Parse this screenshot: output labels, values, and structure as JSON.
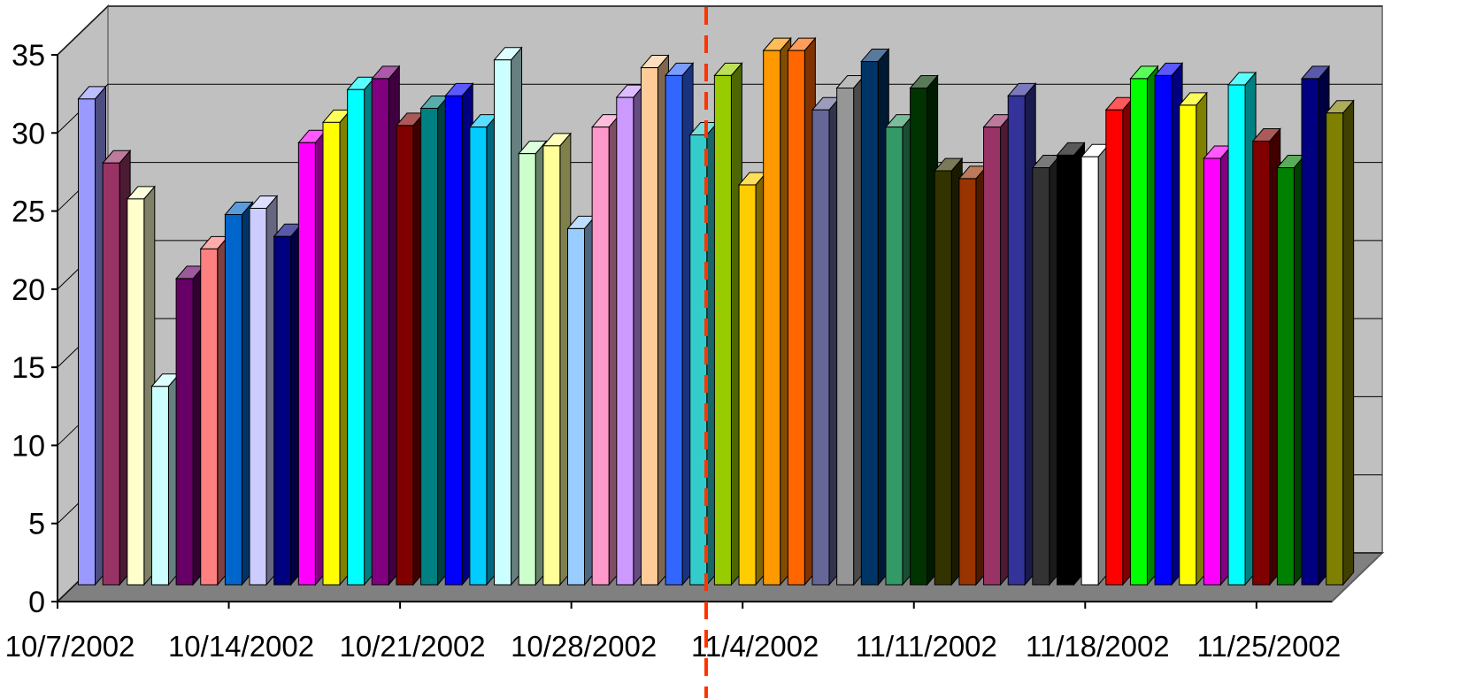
{
  "chart_data": {
    "type": "bar3d",
    "categories": [
      "10/7/2002",
      null,
      null,
      null,
      null,
      null,
      null,
      "10/14/2002",
      null,
      null,
      null,
      null,
      null,
      null,
      "10/21/2002",
      null,
      null,
      null,
      null,
      null,
      null,
      "10/28/2002",
      null,
      null,
      null,
      null,
      null,
      null,
      "11/4/2002",
      null,
      null,
      null,
      null,
      null,
      null,
      "11/11/2002",
      null,
      null,
      null,
      null,
      null,
      null,
      "11/18/2002",
      null,
      null,
      null,
      null,
      null,
      null,
      "11/25/2002",
      null,
      null
    ],
    "values": [
      31.1,
      27.0,
      24.7,
      12.7,
      19.6,
      21.5,
      23.7,
      24.1,
      22.3,
      28.3,
      29.6,
      31.7,
      32.4,
      29.4,
      30.5,
      31.3,
      29.3,
      33.6,
      27.6,
      28.1,
      22.8,
      29.3,
      31.2,
      33.1,
      32.6,
      28.8,
      32.6,
      25.6,
      34.2,
      34.2,
      30.4,
      31.8,
      33.5,
      29.3,
      31.8,
      26.5,
      26.0,
      29.3,
      31.3,
      26.7,
      27.5,
      27.4,
      30.4,
      32.4,
      32.6,
      30.7,
      27.3,
      32.0,
      28.4,
      26.7,
      32.4,
      30.2
    ],
    "colors": [
      "#9999ff",
      "#993366",
      "#ffffcc",
      "#ccffff",
      "#660066",
      "#ff8080",
      "#0066cc",
      "#ccccff",
      "#000080",
      "#ff00ff",
      "#ffff00",
      "#00ffff",
      "#800080",
      "#800000",
      "#008080",
      "#0000ff",
      "#00ccff",
      "#ccffff",
      "#ccffcc",
      "#ffff99",
      "#99ccff",
      "#ff99cc",
      "#cc99ff",
      "#ffcc99",
      "#3366ff",
      "#33cccc",
      "#99cc00",
      "#ffcc00",
      "#ff9900",
      "#ff6600",
      "#666699",
      "#969696",
      "#003366",
      "#339966",
      "#003300",
      "#333300",
      "#993300",
      "#993366",
      "#333399",
      "#333333",
      "#000000",
      "#ffffff",
      "#ff0000",
      "#00ff00",
      "#0000ff",
      "#ffff00",
      "#ff00ff",
      "#00ffff",
      "#800000",
      "#008000",
      "#000080",
      "#808000"
    ],
    "ylim": [
      0,
      35
    ],
    "yticks": [
      0,
      5,
      10,
      15,
      20,
      25,
      30,
      35
    ],
    "grid": true
  }
}
